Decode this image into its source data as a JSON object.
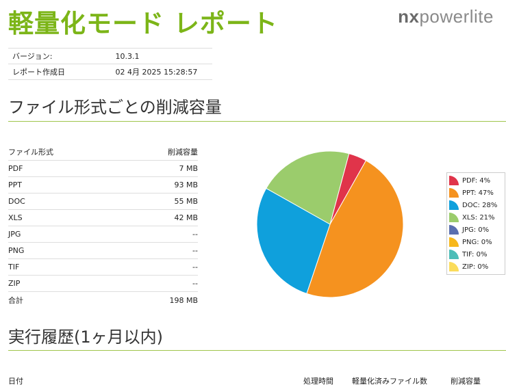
{
  "header": {
    "title": "軽量化モード レポート",
    "logo_part1": "nx",
    "logo_part2": "powerlite"
  },
  "meta": [
    {
      "label": "バージョン:",
      "value": "10.3.1"
    },
    {
      "label": "レポート作成日",
      "value": "02 4月 2025 15:28:57"
    }
  ],
  "section1": {
    "title": "ファイル形式ごとの削減容量",
    "col_type": "ファイル形式",
    "col_saved": "削減容量",
    "rows": [
      {
        "type": "PDF",
        "saved": "7 MB"
      },
      {
        "type": "PPT",
        "saved": "93 MB"
      },
      {
        "type": "DOC",
        "saved": "55 MB"
      },
      {
        "type": "XLS",
        "saved": "42 MB"
      },
      {
        "type": "JPG",
        "saved": "--"
      },
      {
        "type": "PNG",
        "saved": "--"
      },
      {
        "type": "TIF",
        "saved": "--"
      },
      {
        "type": "ZIP",
        "saved": "--"
      }
    ],
    "total_label": "合計",
    "total_value": "198 MB"
  },
  "chart_data": {
    "type": "pie",
    "labels": [
      "PDF: 4%",
      "PPT: 47%",
      "DOC: 28%",
      "XLS: 21%",
      "JPG: 0%",
      "PNG: 0%",
      "TIF: 0%",
      "ZIP: 0%"
    ],
    "values": [
      4,
      47,
      28,
      21,
      0,
      0,
      0,
      0
    ],
    "colors": [
      "#e0344a",
      "#f5921f",
      "#0fa0dc",
      "#9bcc6c",
      "#5a6fb0",
      "#f7b81c",
      "#4cbdb8",
      "#fbdc5b"
    ],
    "legend": "right"
  },
  "section2": {
    "title": "実行履歴(1ヶ月以内)",
    "columns": [
      "日付",
      "処理時間",
      "軽量化済みファイル数",
      "削減容量"
    ]
  }
}
